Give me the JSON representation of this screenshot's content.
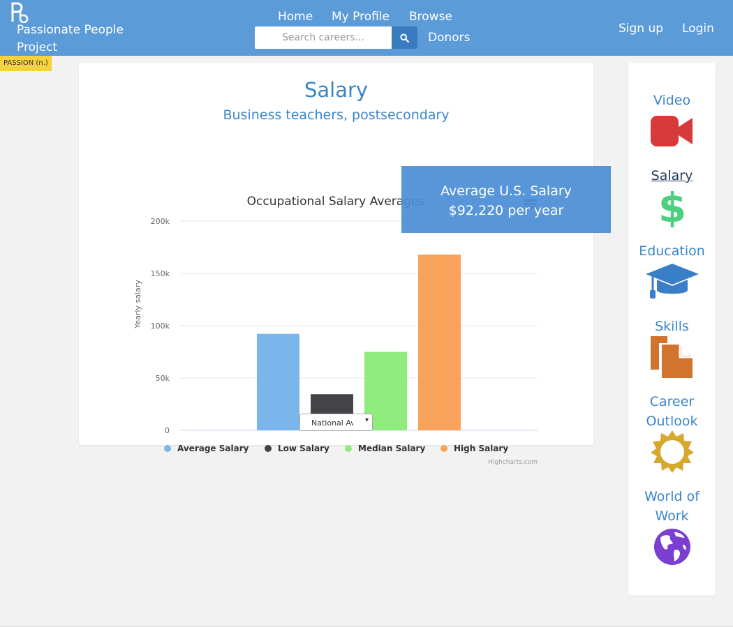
{
  "nav": {
    "brand": "Passionate People Project",
    "brand_line1": "Passionate People",
    "brand_line2": "Project",
    "links": [
      "Home",
      "My Profile",
      "Browse",
      "Donors"
    ],
    "search_placeholder": "Search careers...",
    "right_links": [
      "Sign up",
      "Login"
    ],
    "passion_tag": "PASSION (n.)"
  },
  "main": {
    "title": "Salary",
    "subtitle": "Business teachers, postsecondary",
    "tooltip_line1": "Average U.S. Salary",
    "tooltip_line2": "$92,220 per year",
    "select_value": "National Av",
    "select_arrow": "▾"
  },
  "sidebar": {
    "items": [
      {
        "label": "Video",
        "icon": "video-camera-icon",
        "color": "#d63a3a"
      },
      {
        "label": "Salary",
        "icon": "dollar-icon",
        "color": "#4ccf7f"
      },
      {
        "label": "Education",
        "icon": "graduation-cap-icon",
        "color": "#3a7ec8"
      },
      {
        "label": "Skills",
        "icon": "documents-icon",
        "color": "#d2742e"
      },
      {
        "label": "Career Outlook",
        "label_line1": "Career",
        "label_line2": "Outlook",
        "icon": "sun-icon",
        "color": "#d6a82e"
      },
      {
        "label": "World of Work",
        "label_line1": "World of",
        "label_line2": "Work",
        "icon": "globe-icon",
        "color": "#7a3fd0"
      }
    ]
  },
  "colors": {
    "navbar": "#5b9bd8",
    "accent": "#3a85c8",
    "passion_tag": "#f6d23b"
  },
  "chart_data": {
    "type": "bar",
    "title": "Occupational Salary Averages",
    "ylabel": "Yearly salary",
    "xlabel": "",
    "ylim": [
      0,
      200000
    ],
    "yticks": [
      0,
      50000,
      100000,
      150000,
      200000
    ],
    "ytick_labels": [
      "0",
      "50k",
      "100k",
      "150k",
      "200k"
    ],
    "series": [
      {
        "name": "Average Salary",
        "value": 92220,
        "color": "#7cb5ec"
      },
      {
        "name": "Low Salary",
        "value": 34500,
        "color": "#434348"
      },
      {
        "name": "Median Salary",
        "value": 75000,
        "color": "#90ed7d"
      },
      {
        "name": "High Salary",
        "value": 168000,
        "color": "#f7a35c"
      }
    ],
    "legend_position": "bottom",
    "credits": "Highcharts.com",
    "grid": true
  }
}
